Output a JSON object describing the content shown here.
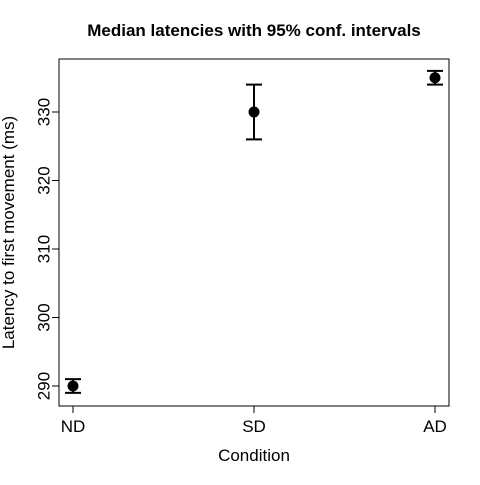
{
  "chart_data": {
    "type": "scatter",
    "title": "Median latencies with 95% conf. intervals",
    "xlabel": "Condition",
    "ylabel": "Latency to first movement (ms)",
    "categories": [
      "ND",
      "SD",
      "AD"
    ],
    "series": [
      {
        "values": [
          290,
          330,
          335
        ],
        "ci_lower": [
          289,
          326,
          334
        ],
        "ci_upper": [
          291,
          334,
          336
        ]
      }
    ],
    "yticks": [
      290,
      300,
      310,
      320,
      330
    ],
    "ylim": [
      288,
      338
    ],
    "grid": false,
    "legend": "none",
    "colors": {
      "marker": "#000000",
      "axis": "#000000",
      "background": "#ffffff"
    }
  }
}
